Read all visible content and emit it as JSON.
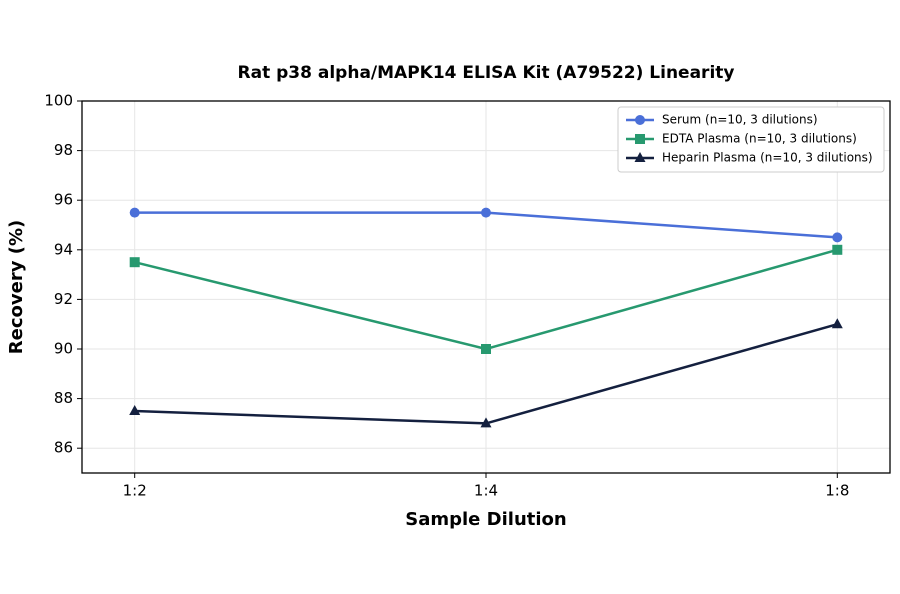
{
  "chart_data": {
    "type": "line",
    "title": "Rat p38 alpha/MAPK14 ELISA Kit (A79522) Linearity",
    "x_label": "Sample Dilution",
    "y_label": "Recovery (%)",
    "categories": [
      "1:2",
      "1:4",
      "1:8"
    ],
    "series": [
      {
        "name": "Serum (n=10, 3 dilutions)",
        "color": "#4a6fd8",
        "marker": "circle",
        "values": [
          95.5,
          95.5,
          94.5
        ]
      },
      {
        "name": "EDTA Plasma (n=10, 3 dilutions)",
        "color": "#27996f",
        "marker": "square",
        "values": [
          93.5,
          90,
          94
        ]
      },
      {
        "name": "Heparin Plasma (n=10, 3 dilutions)",
        "color": "#14203f",
        "marker": "triangle",
        "values": [
          87.5,
          87,
          91
        ]
      }
    ],
    "ylim": [
      85,
      100
    ],
    "yticks": [
      86,
      88,
      90,
      92,
      94,
      96,
      98,
      100
    ],
    "grid": true,
    "legend": "upper-right"
  }
}
